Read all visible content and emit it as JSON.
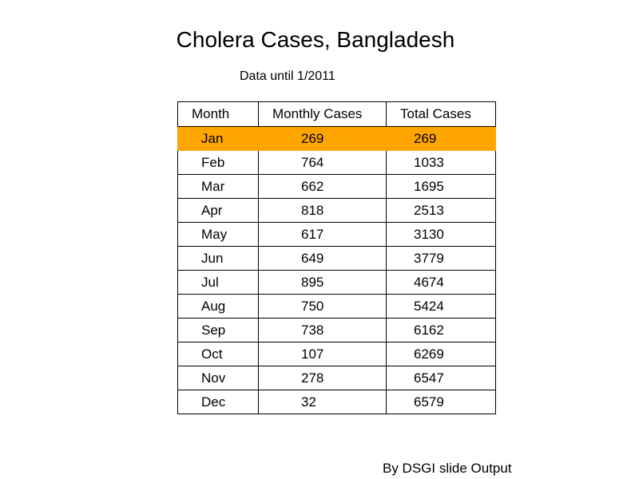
{
  "chart_data": {
    "type": "table",
    "title": "Cholera Cases, Bangladesh",
    "subtitle": "Data until 1/2011",
    "footer": "By DSGI slide Output",
    "columns": [
      "Month",
      "Monthly Cases",
      "Total Cases"
    ],
    "highlight_row": 0,
    "highlight_color": "#ffa500",
    "rows": [
      {
        "month": "Jan",
        "monthly": "269",
        "total": "269"
      },
      {
        "month": "Feb",
        "monthly": "764",
        "total": "1033"
      },
      {
        "month": "Mar",
        "monthly": "662",
        "total": "1695"
      },
      {
        "month": "Apr",
        "monthly": "818",
        "total": "2513"
      },
      {
        "month": "May",
        "monthly": "617",
        "total": "3130"
      },
      {
        "month": "Jun",
        "monthly": "649",
        "total": "3779"
      },
      {
        "month": "Jul",
        "monthly": "895",
        "total": "4674"
      },
      {
        "month": "Aug",
        "monthly": "750",
        "total": "5424"
      },
      {
        "month": "Sep",
        "monthly": "738",
        "total": "6162"
      },
      {
        "month": "Oct",
        "monthly": "107",
        "total": "6269"
      },
      {
        "month": "Nov",
        "monthly": "278",
        "total": "6547"
      },
      {
        "month": "Dec",
        "monthly": "32",
        "total": "6579"
      }
    ]
  }
}
